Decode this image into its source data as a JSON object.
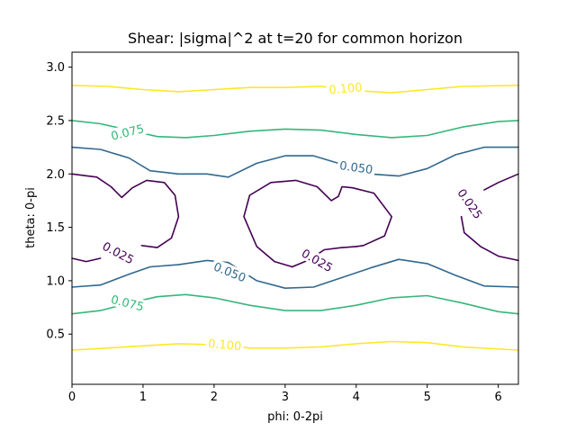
{
  "chart_data": {
    "type": "contour",
    "title": "Shear: |sigma|^2 at t=20 for common horizon",
    "xlabel": "phi: 0-2pi",
    "ylabel": "theta: 0-pi",
    "xlim": [
      0,
      6.283
    ],
    "ylim": [
      0.03,
      3.14
    ],
    "x_ticks": [
      0,
      1,
      2,
      3,
      4,
      5,
      6
    ],
    "x_tick_labels": [
      "0",
      "1",
      "2",
      "3",
      "4",
      "5",
      "6"
    ],
    "y_ticks": [
      0.5,
      1.0,
      1.5,
      2.0,
      2.5,
      3.0
    ],
    "y_tick_labels": [
      "0.5",
      "1.0",
      "1.5",
      "2.0",
      "2.5",
      "3.0"
    ],
    "grid": false,
    "levels": [
      {
        "value": 0.1,
        "label": "0.100",
        "color": "#fde725",
        "lines": [
          [
            [
              0,
              2.83
            ],
            [
              0.5,
              2.82
            ],
            [
              1.0,
              2.79
            ],
            [
              1.5,
              2.77
            ],
            [
              2.0,
              2.79
            ],
            [
              2.5,
              2.81
            ],
            [
              3.0,
              2.81
            ],
            [
              3.5,
              2.82
            ],
            [
              4.0,
              2.78
            ],
            [
              4.5,
              2.76
            ],
            [
              5.0,
              2.79
            ],
            [
              5.5,
              2.82
            ],
            [
              6.283,
              2.83
            ]
          ],
          [
            [
              0,
              0.35
            ],
            [
              0.5,
              0.37
            ],
            [
              1.0,
              0.39
            ],
            [
              1.5,
              0.41
            ],
            [
              2.0,
              0.4
            ],
            [
              2.5,
              0.37
            ],
            [
              3.0,
              0.37
            ],
            [
              3.5,
              0.38
            ],
            [
              4.0,
              0.41
            ],
            [
              4.5,
              0.43
            ],
            [
              5.0,
              0.42
            ],
            [
              5.5,
              0.38
            ],
            [
              6.283,
              0.35
            ]
          ]
        ],
        "labels_at": [
          [
            3.85,
            2.8,
            -5
          ],
          [
            2.15,
            0.4,
            5
          ]
        ]
      },
      {
        "value": 0.075,
        "label": "0.075",
        "color": "#35b779",
        "lines": [
          [
            [
              0,
              2.5
            ],
            [
              0.4,
              2.47
            ],
            [
              0.8,
              2.41
            ],
            [
              1.2,
              2.35
            ],
            [
              1.6,
              2.34
            ],
            [
              2.0,
              2.36
            ],
            [
              2.5,
              2.4
            ],
            [
              3.0,
              2.42
            ],
            [
              3.5,
              2.41
            ],
            [
              4.0,
              2.37
            ],
            [
              4.5,
              2.34
            ],
            [
              5.0,
              2.36
            ],
            [
              5.5,
              2.44
            ],
            [
              6.0,
              2.49
            ],
            [
              6.283,
              2.5
            ]
          ],
          [
            [
              0,
              0.69
            ],
            [
              0.4,
              0.72
            ],
            [
              0.8,
              0.79
            ],
            [
              1.2,
              0.85
            ],
            [
              1.6,
              0.87
            ],
            [
              2.0,
              0.84
            ],
            [
              2.5,
              0.77
            ],
            [
              3.0,
              0.72
            ],
            [
              3.5,
              0.72
            ],
            [
              4.0,
              0.77
            ],
            [
              4.5,
              0.84
            ],
            [
              5.0,
              0.86
            ],
            [
              5.5,
              0.79
            ],
            [
              6.0,
              0.71
            ],
            [
              6.283,
              0.69
            ]
          ]
        ],
        "labels_at": [
          [
            0.78,
            2.39,
            -14
          ],
          [
            0.78,
            0.79,
            14
          ]
        ]
      },
      {
        "value": 0.05,
        "label": "0.050",
        "color": "#31688e",
        "lines": [
          [
            [
              0,
              2.25
            ],
            [
              0.4,
              2.23
            ],
            [
              0.8,
              2.15
            ],
            [
              1.1,
              2.03
            ],
            [
              1.5,
              2.0
            ],
            [
              1.9,
              2.0
            ],
            [
              2.2,
              1.97
            ],
            [
              2.6,
              2.1
            ],
            [
              3.0,
              2.17
            ],
            [
              3.4,
              2.17
            ],
            [
              3.8,
              2.09
            ],
            [
              4.2,
              2.0
            ],
            [
              4.6,
              1.98
            ],
            [
              5.0,
              2.05
            ],
            [
              5.4,
              2.18
            ],
            [
              5.8,
              2.25
            ],
            [
              6.283,
              2.25
            ]
          ],
          [
            [
              0,
              0.94
            ],
            [
              0.4,
              0.96
            ],
            [
              0.8,
              1.06
            ],
            [
              1.1,
              1.13
            ],
            [
              1.5,
              1.15
            ],
            [
              1.9,
              1.19
            ],
            [
              2.2,
              1.17
            ],
            [
              2.6,
              1.0
            ],
            [
              3.0,
              0.93
            ],
            [
              3.4,
              0.94
            ],
            [
              3.8,
              1.03
            ],
            [
              4.2,
              1.12
            ],
            [
              4.6,
              1.2
            ],
            [
              5.0,
              1.16
            ],
            [
              5.4,
              1.05
            ],
            [
              5.8,
              0.95
            ],
            [
              6.283,
              0.94
            ]
          ]
        ],
        "labels_at": [
          [
            4.0,
            2.06,
            8
          ],
          [
            2.22,
            1.08,
            22
          ]
        ]
      },
      {
        "value": 0.025,
        "label": "0.025",
        "color": "#440154",
        "lines": [
          [
            [
              0,
              2.0
            ],
            [
              0.35,
              1.97
            ],
            [
              0.55,
              1.88
            ],
            [
              0.7,
              1.78
            ],
            [
              0.85,
              1.87
            ],
            [
              1.05,
              1.94
            ],
            [
              1.3,
              1.92
            ],
            [
              1.45,
              1.8
            ],
            [
              1.5,
              1.6
            ],
            [
              1.4,
              1.4
            ],
            [
              1.2,
              1.31
            ],
            [
              0.98,
              1.33
            ]
          ],
          [
            [
              0,
              1.21
            ],
            [
              0.2,
              1.18
            ],
            [
              0.4,
              1.21
            ]
          ],
          [
            [
              4.0,
              1.32
            ],
            [
              3.8,
              1.31
            ],
            [
              3.55,
              1.29
            ],
            [
              3.35,
              1.2
            ],
            [
              3.1,
              1.13
            ]
          ],
          [
            [
              3.1,
              1.13
            ],
            [
              2.85,
              1.18
            ],
            [
              2.6,
              1.32
            ],
            [
              2.42,
              1.6
            ],
            [
              2.5,
              1.8
            ],
            [
              2.8,
              1.92
            ],
            [
              3.15,
              1.94
            ],
            [
              3.45,
              1.88
            ],
            [
              3.65,
              1.75
            ],
            [
              3.75,
              1.79
            ],
            [
              3.8,
              1.88
            ],
            [
              3.95,
              1.87
            ],
            [
              4.25,
              1.82
            ],
            [
              4.5,
              1.6
            ],
            [
              4.4,
              1.42
            ],
            [
              4.1,
              1.33
            ],
            [
              4.0,
              1.32
            ]
          ],
          [
            [
              6.283,
              2.0
            ],
            [
              6.0,
              1.92
            ],
            [
              5.8,
              1.85
            ]
          ],
          [
            [
              5.48,
              1.6
            ],
            [
              5.52,
              1.45
            ],
            [
              5.75,
              1.32
            ],
            [
              6.0,
              1.23
            ],
            [
              6.283,
              1.19
            ]
          ]
        ],
        "labels_at": [
          [
            0.65,
            1.26,
            28
          ],
          [
            3.45,
            1.19,
            30
          ],
          [
            5.6,
            1.72,
            55
          ]
        ]
      }
    ]
  }
}
